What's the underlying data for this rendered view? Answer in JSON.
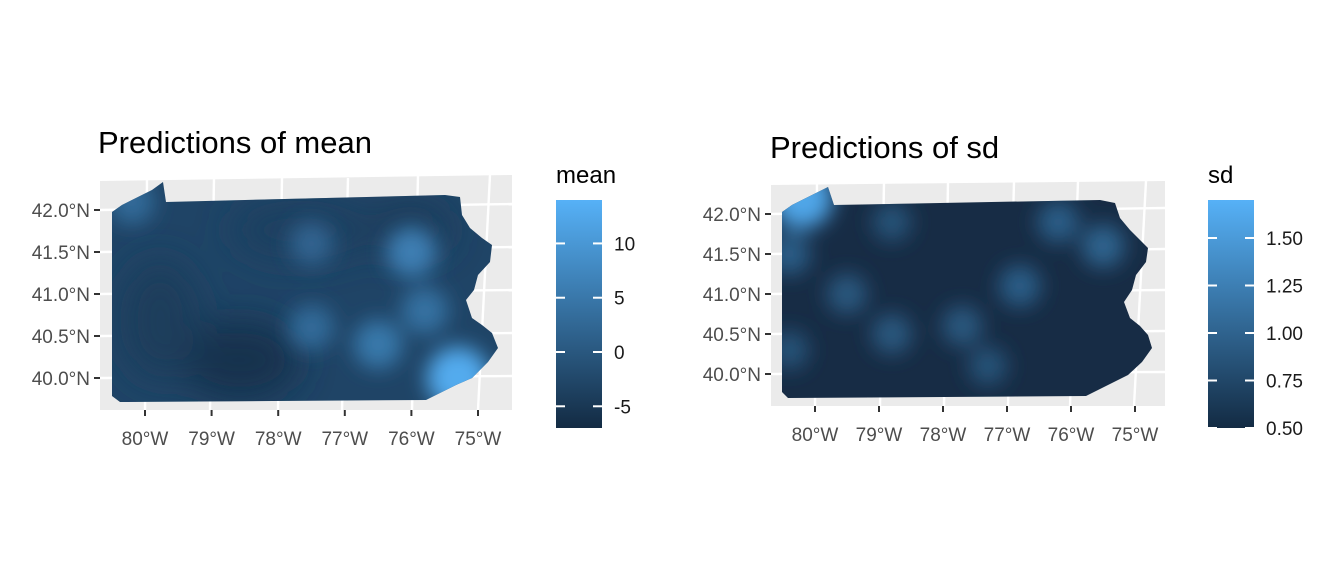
{
  "chart_data": [
    {
      "type": "heatmap",
      "title": "Predictions of mean",
      "legend": {
        "title": "mean",
        "breaks": [
          -5,
          0,
          5,
          10
        ],
        "labels": [
          "-5",
          "0",
          "5",
          "10"
        ],
        "range": [
          -7,
          14
        ],
        "low_color": "#132B43",
        "high_color": "#56B1F7"
      },
      "x_ticks": {
        "values": [
          -80,
          -79,
          -78,
          -77,
          -76,
          -75
        ],
        "labels": [
          "80°W",
          "79°W",
          "78°W",
          "77°W",
          "76°W",
          "75°W"
        ]
      },
      "y_ticks": {
        "values": [
          40.0,
          40.5,
          41.0,
          41.5,
          42.0
        ],
        "labels": [
          "40.0°N",
          "40.5°N",
          "41.0°N",
          "41.5°N",
          "42.0°N"
        ]
      },
      "highlights": [
        {
          "lon": -75.3,
          "lat": 40.0,
          "value": 13
        },
        {
          "lon": -76.0,
          "lat": 41.5,
          "value": 6
        },
        {
          "lon": -76.5,
          "lat": 40.4,
          "value": 5
        },
        {
          "lon": -77.5,
          "lat": 40.6,
          "value": 3
        },
        {
          "lon": -77.5,
          "lat": 41.6,
          "value": 2
        },
        {
          "lon": -75.8,
          "lat": 40.8,
          "value": 4
        },
        {
          "lon": -80.2,
          "lat": 42.1,
          "value": 3
        }
      ]
    },
    {
      "type": "heatmap",
      "title": "Predictions of sd",
      "legend": {
        "title": "sd",
        "breaks": [
          0.5,
          0.75,
          1.0,
          1.25,
          1.5
        ],
        "labels": [
          "0.50",
          "0.75",
          "1.00",
          "1.25",
          "1.50"
        ],
        "range": [
          0.5,
          1.7
        ],
        "low_color": "#132B43",
        "high_color": "#56B1F7"
      },
      "x_ticks": {
        "values": [
          -80,
          -79,
          -78,
          -77,
          -76,
          -75
        ],
        "labels": [
          "80°W",
          "79°W",
          "78°W",
          "77°W",
          "76°W",
          "75°W"
        ]
      },
      "y_ticks": {
        "values": [
          40.0,
          40.5,
          41.0,
          41.5,
          42.0
        ],
        "labels": [
          "40.0°N",
          "40.5°N",
          "41.0°N",
          "41.5°N",
          "42.0°N"
        ]
      },
      "highlights": [
        {
          "lon": -80.2,
          "lat": 42.2,
          "value": 1.6
        },
        {
          "lon": -80.4,
          "lat": 41.5,
          "value": 0.95
        },
        {
          "lon": -79.5,
          "lat": 41.0,
          "value": 0.9
        },
        {
          "lon": -78.8,
          "lat": 40.5,
          "value": 0.9
        },
        {
          "lon": -77.7,
          "lat": 40.6,
          "value": 0.9
        },
        {
          "lon": -76.8,
          "lat": 41.1,
          "value": 0.95
        },
        {
          "lon": -76.2,
          "lat": 41.9,
          "value": 0.95
        },
        {
          "lon": -75.5,
          "lat": 41.6,
          "value": 1.0
        },
        {
          "lon": -77.3,
          "lat": 40.1,
          "value": 0.85
        },
        {
          "lon": -80.4,
          "lat": 40.3,
          "value": 0.85
        },
        {
          "lon": -78.8,
          "lat": 41.9,
          "value": 0.85
        }
      ]
    }
  ]
}
